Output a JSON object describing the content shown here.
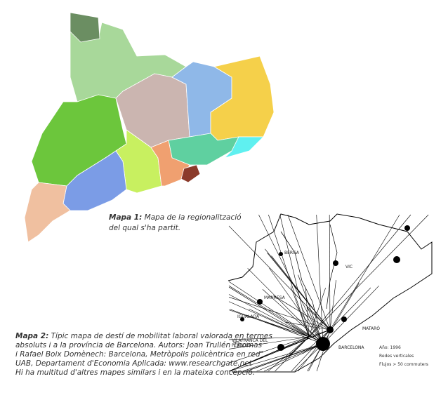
{
  "map1": {
    "caption_label": "Mapa 1:",
    "caption_lines": [
      "Mapa de la regionalització",
      "del qual s'ha partit."
    ]
  },
  "map2": {
    "places": [
      "BERGA",
      "VIC",
      "MANRESA",
      "IGUALADA",
      "VILAFRANCA DEL",
      "PENEDÈS",
      "MATARÓ",
      "BARCELONA"
    ],
    "legend": [
      "Año: 1996",
      "Redes verticales",
      "Flujos > 50 commuters"
    ],
    "caption_label": "Mapa 2:",
    "caption_lines": [
      "Típic mapa de destí de mobilitat laboral valorada en termes",
      "absoluts i a la província de Barcelona. Autors: Joan Trullén Thomas",
      "i Rafael Boix Domènech: Barcelona, Metròpolis policèntrica en red\",",
      "UAB, Departament d'Economia Aplicada: www.researchgate.net",
      "Hi ha multitud d'altres mapes similars i en la mateixa concepció."
    ]
  }
}
